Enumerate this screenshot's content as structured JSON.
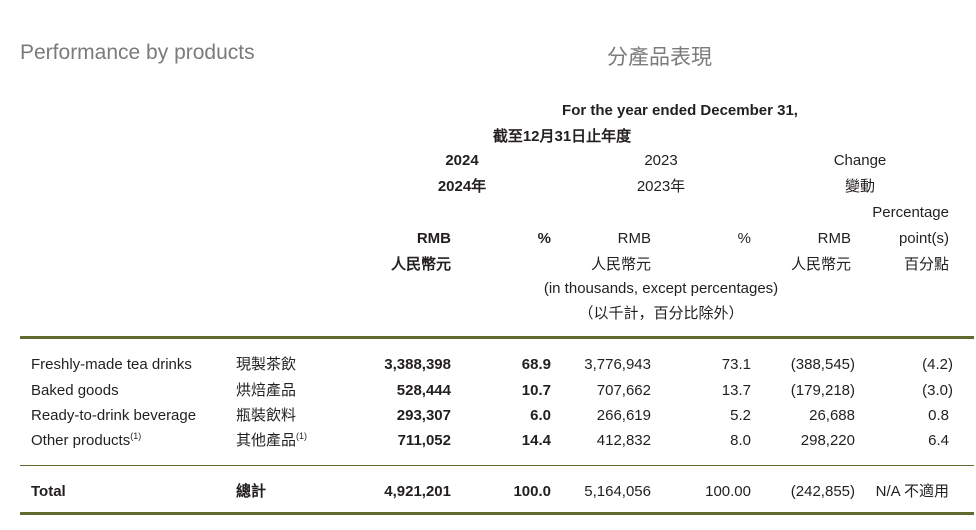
{
  "title_en": "Performance by products",
  "title_zh": "分產品表現",
  "header": {
    "period_en": "For the year ended December 31,",
    "period_zh": "截至12月31日止年度",
    "y2024_en": "2024",
    "y2024_zh": "2024年",
    "y2023_en": "2023",
    "y2023_zh": "2023年",
    "change_en": "Change",
    "change_zh": "變動",
    "rmb_en": "RMB",
    "rmb_zh": "人民幣元",
    "pct": "%",
    "pp_en_1": "Percentage",
    "pp_en_2": "point(s)",
    "pp_zh": "百分點",
    "unit_en": "(in thousands, except percentages)",
    "unit_zh": "（以千計，百分比除外）"
  },
  "rows": [
    {
      "en": "Freshly-made tea drinks",
      "zh": "現製茶飲",
      "sup": "",
      "rmb2024": "3,388,398",
      "pct2024": "68.9",
      "rmb2023": "3,776,943",
      "pct2023": "73.1",
      "change": "(388,545)",
      "pp": "(4.2)"
    },
    {
      "en": "Baked goods",
      "zh": "烘焙產品",
      "sup": "",
      "rmb2024": "528,444",
      "pct2024": "10.7",
      "rmb2023": "707,662",
      "pct2023": "13.7",
      "change": "(179,218)",
      "pp": "(3.0)"
    },
    {
      "en": "Ready-to-drink beverage",
      "zh": "瓶裝飲料",
      "sup": "",
      "rmb2024": "293,307",
      "pct2024": "6.0",
      "rmb2023": "266,619",
      "pct2023": "5.2",
      "change": "26,688",
      "pp": "0.8"
    },
    {
      "en": "Other products",
      "zh": "其他產品",
      "sup": "(1)",
      "rmb2024": "711,052",
      "pct2024": "14.4",
      "rmb2023": "412,832",
      "pct2023": "8.0",
      "change": "298,220",
      "pp": "6.4"
    }
  ],
  "total": {
    "en": "Total",
    "zh": "總計",
    "rmb2024": "4,921,201",
    "pct2024": "100.0",
    "rmb2023": "5,164,056",
    "pct2023": "100.00",
    "change": "(242,855)",
    "pp": "N/A 不適用"
  }
}
